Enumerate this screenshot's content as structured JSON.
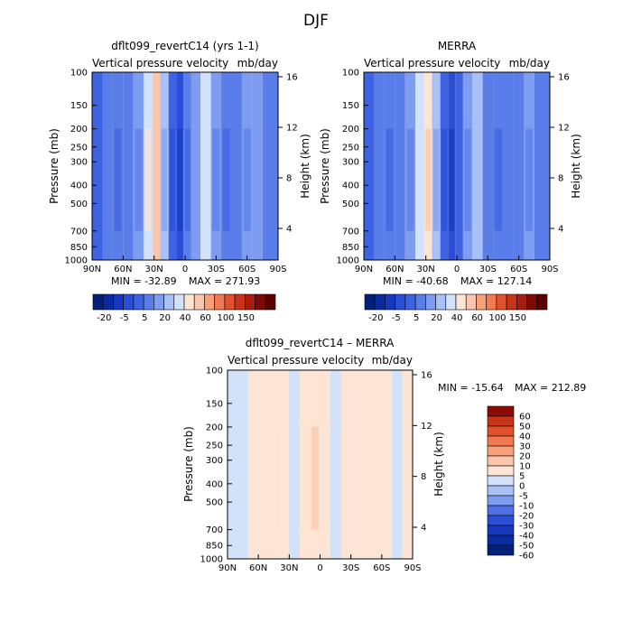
{
  "figure": {
    "title": "DJF"
  },
  "scales": {
    "fields": [
      -60,
      -50,
      -40,
      -30,
      -20,
      -10,
      -5,
      0,
      5,
      10,
      20,
      30,
      40,
      50,
      60,
      80,
      100,
      150
    ],
    "fields_labels": [
      "-20",
      "-5",
      "5",
      "20",
      "40",
      "60",
      "100",
      "150"
    ],
    "diff": [
      -60,
      -50,
      -40,
      -30,
      -20,
      -10,
      -5,
      0,
      5,
      10,
      20,
      30,
      40,
      50,
      60
    ],
    "diff_labels": [
      "60",
      "50",
      "40",
      "30",
      "20",
      "10",
      "5",
      "0",
      "-5",
      "-10",
      "-20",
      "-30",
      "-40",
      "-50",
      "-60"
    ]
  },
  "colors": {
    "fields": [
      "#00207a",
      "#0a2aa0",
      "#1638c0",
      "#2a4fd6",
      "#3d63e2",
      "#5a7ee9",
      "#7f9df0",
      "#a9c1f6",
      "#d2e2fb",
      "#fde4d4",
      "#fbc6ab",
      "#f7a07a",
      "#f27a52",
      "#e2502c",
      "#c93418",
      "#a81e0c",
      "#7d0b04",
      "#5a0000"
    ],
    "diff": [
      "#00207a",
      "#0a2aa0",
      "#1638c0",
      "#2a4fd6",
      "#4d70e6",
      "#7f9df0",
      "#a9c1f6",
      "#d2e2fb",
      "#fde4d4",
      "#fbc6ab",
      "#f7a07a",
      "#f27a52",
      "#e2502c",
      "#c93418",
      "#8e0c05"
    ]
  },
  "chart_data": [
    {
      "type": "heatmap",
      "title": "dflt099_revertC14 (yrs 1-1)",
      "subtitle_left": "Vertical pressure velocity",
      "subtitle_right": "mb/day",
      "ylabel": "Pressure (mb)",
      "ylabel_right": "Height (km)",
      "x_ticks": [
        "90N",
        "60N",
        "30N",
        "0",
        "30S",
        "60S",
        "90S"
      ],
      "y_ticks": [
        "100",
        "150",
        "200",
        "250",
        "300",
        "400",
        "500",
        "700",
        "850",
        "1000"
      ],
      "y_ticks_right": [
        "16",
        "12",
        "8",
        "4"
      ],
      "min_text": "MIN = -32.89",
      "max_text": "MAX = 271.93",
      "xlim": [
        90,
        -90
      ],
      "ylim": [
        1000,
        100
      ],
      "scale": "fields",
      "columns": [
        {
          "lat": 85,
          "value": -20
        },
        {
          "lat": 75,
          "value": -12
        },
        {
          "lat": 65,
          "value": -16
        },
        {
          "lat": 55,
          "value": -10
        },
        {
          "lat": 45,
          "value": -8
        },
        {
          "lat": 35,
          "value": 5
        },
        {
          "lat": 28,
          "value": 12
        },
        {
          "lat": 20,
          "value": -4
        },
        {
          "lat": 12,
          "value": -24
        },
        {
          "lat": 5,
          "value": -30
        },
        {
          "lat": -2,
          "value": -18
        },
        {
          "lat": -10,
          "value": -6
        },
        {
          "lat": -20,
          "value": 2
        },
        {
          "lat": -30,
          "value": -9
        },
        {
          "lat": -40,
          "value": -16
        },
        {
          "lat": -50,
          "value": -12
        },
        {
          "lat": -60,
          "value": -8
        },
        {
          "lat": -70,
          "value": -6
        },
        {
          "lat": -80,
          "value": -10
        }
      ]
    },
    {
      "type": "heatmap",
      "title": "MERRA",
      "subtitle_left": "Vertical pressure velocity",
      "subtitle_right": "mb/day",
      "ylabel": "Pressure (mb)",
      "ylabel_right": "Height (km)",
      "x_ticks": [
        "90N",
        "60N",
        "30N",
        "0",
        "30S",
        "60S",
        "90S"
      ],
      "y_ticks": [
        "100",
        "150",
        "200",
        "250",
        "300",
        "400",
        "500",
        "700",
        "850",
        "1000"
      ],
      "y_ticks_right": [
        "16",
        "12",
        "8",
        "4"
      ],
      "min_text": "MIN = -40.68",
      "max_text": "MAX = 127.14",
      "xlim": [
        90,
        -90
      ],
      "ylim": [
        1000,
        100
      ],
      "scale": "fields",
      "columns": [
        {
          "lat": 85,
          "value": -22
        },
        {
          "lat": 75,
          "value": -14
        },
        {
          "lat": 65,
          "value": -18
        },
        {
          "lat": 55,
          "value": -12
        },
        {
          "lat": 45,
          "value": -8
        },
        {
          "lat": 35,
          "value": 3
        },
        {
          "lat": 28,
          "value": 10
        },
        {
          "lat": 20,
          "value": -4
        },
        {
          "lat": 12,
          "value": -26
        },
        {
          "lat": 5,
          "value": -35
        },
        {
          "lat": -2,
          "value": -20
        },
        {
          "lat": -10,
          "value": -8
        },
        {
          "lat": -20,
          "value": 0
        },
        {
          "lat": -30,
          "value": -10
        },
        {
          "lat": -40,
          "value": -18
        },
        {
          "lat": -50,
          "value": -14
        },
        {
          "lat": -60,
          "value": -10
        },
        {
          "lat": -70,
          "value": -8
        },
        {
          "lat": -80,
          "value": -12
        }
      ]
    },
    {
      "type": "heatmap",
      "title": "dflt099_revertC14 – MERRA",
      "subtitle_left": "Vertical pressure velocity",
      "subtitle_right": "mb/day",
      "ylabel": "Pressure (mb)",
      "ylabel_right": "Height (km)",
      "x_ticks": [
        "90N",
        "60N",
        "30N",
        "0",
        "30S",
        "60S",
        "90S"
      ],
      "y_ticks": [
        "100",
        "150",
        "200",
        "250",
        "300",
        "400",
        "500",
        "700",
        "850",
        "1000"
      ],
      "y_ticks_right": [
        "16",
        "12",
        "8",
        "4"
      ],
      "min_text": "MIN = -15.64",
      "max_text": "MAX = 212.89",
      "xlim": [
        90,
        -90
      ],
      "ylim": [
        1000,
        100
      ],
      "scale": "diff",
      "columns": [
        {
          "lat": 85,
          "value": -2
        },
        {
          "lat": 75,
          "value": -1
        },
        {
          "lat": 65,
          "value": 2
        },
        {
          "lat": 55,
          "value": 1
        },
        {
          "lat": 45,
          "value": 2
        },
        {
          "lat": 35,
          "value": 1
        },
        {
          "lat": 25,
          "value": -1
        },
        {
          "lat": 15,
          "value": 2
        },
        {
          "lat": 5,
          "value": 4
        },
        {
          "lat": -5,
          "value": 1
        },
        {
          "lat": -15,
          "value": -2
        },
        {
          "lat": -25,
          "value": 1
        },
        {
          "lat": -35,
          "value": 2
        },
        {
          "lat": -45,
          "value": 1
        },
        {
          "lat": -55,
          "value": 2
        },
        {
          "lat": -65,
          "value": 2
        },
        {
          "lat": -75,
          "value": -1
        },
        {
          "lat": -85,
          "value": 3
        }
      ]
    }
  ]
}
